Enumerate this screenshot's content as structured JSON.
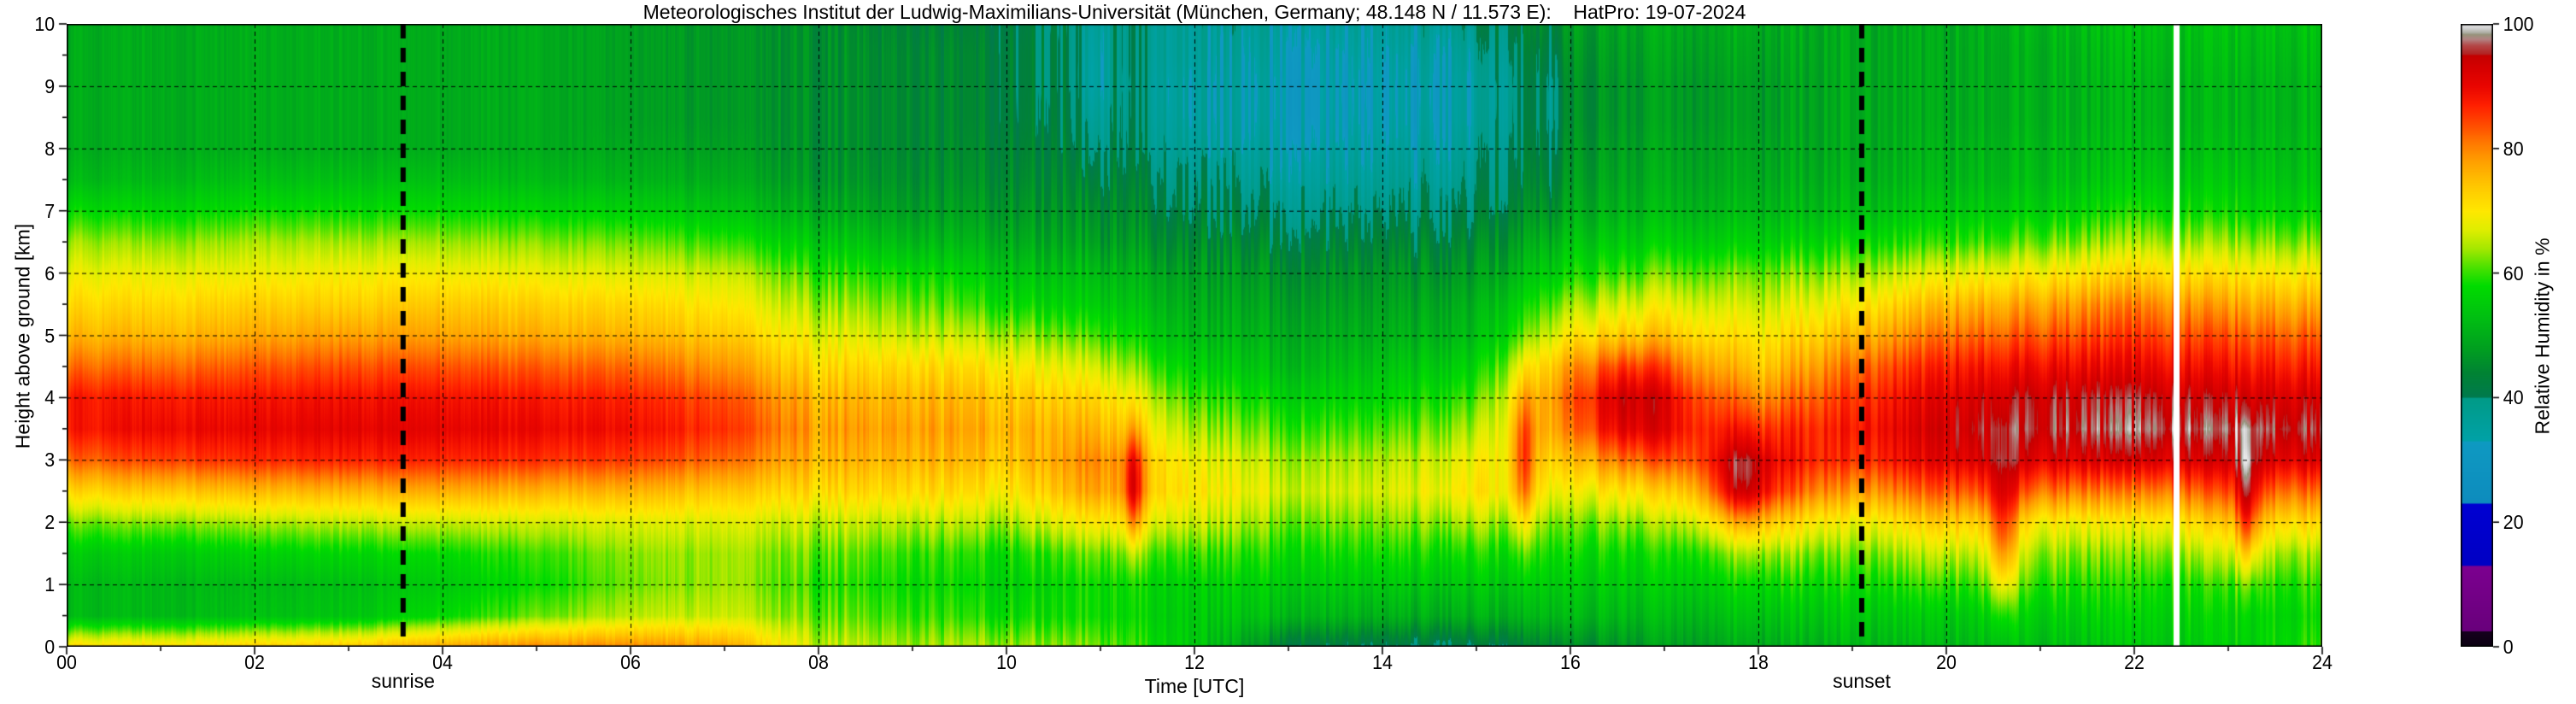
{
  "title": "Meteorologisches Institut der Ludwig-Maximilians-Universität (München, Germany; 48.148 N / 11.573 E):    HatPro: 19-07-2024",
  "x_axis": {
    "label": "Time [UTC]",
    "range_hours": [
      0,
      24
    ],
    "major_tick_step_hours": 2,
    "minor_tick_step_hours": 1,
    "tick_labels": [
      "00",
      "02",
      "04",
      "06",
      "08",
      "10",
      "12",
      "14",
      "16",
      "18",
      "20",
      "22",
      "24"
    ]
  },
  "y_axis": {
    "label": "Height above ground [km]",
    "range_km": [
      0,
      10
    ],
    "major_tick_step_km": 1,
    "minor_tick_step_km": 0.5,
    "tick_labels": [
      "0",
      "1",
      "2",
      "3",
      "4",
      "5",
      "6",
      "7",
      "8",
      "9",
      "10"
    ]
  },
  "colorbar": {
    "label": "Relative Humidity in %",
    "range": [
      0,
      100
    ],
    "tick_labels": [
      "0",
      "20",
      "40",
      "60",
      "80",
      "100"
    ]
  },
  "annotations": {
    "sunrise": {
      "label": "sunrise",
      "time_utc": 3.58
    },
    "sunset": {
      "label": "sunset",
      "time_utc": 19.1
    },
    "data_gap": {
      "time_utc": 22.45,
      "color": "#ffffff"
    }
  },
  "colors": {
    "background": "#ffffff",
    "frame": "#000000",
    "grid": "#000000",
    "sun_lines": "#000000"
  },
  "colormap_stops": [
    [
      0,
      "#0b0012"
    ],
    [
      2.5,
      "#16001e"
    ],
    [
      2.6,
      "#69007c"
    ],
    [
      13,
      "#7c0090"
    ],
    [
      13.1,
      "#0000c4"
    ],
    [
      23,
      "#0000d2"
    ],
    [
      23.1,
      "#0d8cbe"
    ],
    [
      33,
      "#0f9ac2"
    ],
    [
      33.1,
      "#00a2a8"
    ],
    [
      40,
      "#009b87"
    ],
    [
      40.1,
      "#007a4e"
    ],
    [
      44,
      "#008334"
    ],
    [
      48,
      "#00a020"
    ],
    [
      53,
      "#00c012"
    ],
    [
      58,
      "#00dc00"
    ],
    [
      61,
      "#4ce200"
    ],
    [
      64,
      "#a6e800"
    ],
    [
      67,
      "#e0ee00"
    ],
    [
      70,
      "#ffe800"
    ],
    [
      74,
      "#ffc800"
    ],
    [
      78,
      "#ffa000"
    ],
    [
      81,
      "#ff7800"
    ],
    [
      84,
      "#ff4a00"
    ],
    [
      87,
      "#ff2000"
    ],
    [
      90,
      "#ea0600"
    ],
    [
      93,
      "#d60000"
    ],
    [
      95,
      "#c40000"
    ],
    [
      95.2,
      "#b22222"
    ],
    [
      96.6,
      "#b44848"
    ],
    [
      97.6,
      "#b28484"
    ],
    [
      98.4,
      "#96967c"
    ],
    [
      98.6,
      "#ababa0"
    ],
    [
      99.3,
      "#cfcfcf"
    ],
    [
      100,
      "#eaeaea"
    ]
  ],
  "chart_data": {
    "type": "heatmap",
    "title": "Relative humidity time-height section, HATPRO microwave radiometer, 19-07-2024",
    "xlabel": "Time [UTC]",
    "ylabel": "Height above ground [km]",
    "value_unit": "% relative humidity",
    "xlim": [
      0,
      24
    ],
    "ylim": [
      0,
      10
    ],
    "value_range": [
      0,
      100
    ],
    "grid": "dashed, 2 h vertical / 1 km horizontal",
    "legend_position": "colorbar right",
    "x_hours": [
      0,
      1,
      2,
      3,
      4,
      5,
      6,
      7,
      8,
      9,
      10,
      11,
      12,
      13,
      14,
      15,
      16,
      17,
      18,
      19,
      20,
      21,
      22,
      23,
      24
    ],
    "heights_km": [
      0,
      0.5,
      1,
      1.5,
      2,
      2.5,
      3,
      3.5,
      4,
      4.5,
      5,
      5.5,
      6,
      6.5,
      7,
      7.5,
      8,
      8.5,
      9,
      9.5,
      10
    ],
    "rh_profiles_bottom_to_top_by_hour": [
      [
        72,
        52,
        52,
        55,
        62,
        72,
        82,
        88,
        88,
        82,
        76,
        72,
        68,
        64,
        58,
        52,
        50,
        50,
        50,
        50,
        50
      ],
      [
        72,
        52,
        52,
        55,
        63,
        74,
        85,
        90,
        88,
        82,
        76,
        72,
        68,
        63,
        57,
        52,
        50,
        50,
        50,
        50,
        50
      ],
      [
        73,
        53,
        52,
        56,
        64,
        75,
        86,
        90,
        88,
        83,
        77,
        73,
        68,
        64,
        58,
        53,
        50,
        50,
        50,
        50,
        50
      ],
      [
        74,
        54,
        53,
        57,
        65,
        76,
        87,
        91,
        89,
        84,
        78,
        73,
        69,
        64,
        58,
        53,
        50,
        50,
        50,
        50,
        50
      ],
      [
        78,
        58,
        55,
        58,
        66,
        77,
        87,
        91,
        89,
        84,
        78,
        74,
        69,
        64,
        58,
        53,
        50,
        50,
        50,
        50,
        50
      ],
      [
        80,
        62,
        58,
        60,
        66,
        76,
        86,
        90,
        88,
        83,
        77,
        73,
        68,
        63,
        57,
        52,
        50,
        50,
        50,
        50,
        50
      ],
      [
        80,
        65,
        62,
        63,
        67,
        76,
        85,
        89,
        87,
        82,
        76,
        72,
        67,
        62,
        56,
        51,
        49,
        48,
        48,
        48,
        48
      ],
      [
        78,
        66,
        64,
        64,
        67,
        74,
        82,
        86,
        84,
        79,
        74,
        70,
        66,
        60,
        54,
        50,
        48,
        47,
        47,
        47,
        47
      ],
      [
        66,
        62,
        60,
        62,
        66,
        72,
        76,
        78,
        76,
        72,
        68,
        64,
        60,
        55,
        50,
        47,
        46,
        46,
        46,
        46,
        46
      ],
      [
        64,
        60,
        58,
        60,
        65,
        72,
        76,
        78,
        76,
        72,
        66,
        62,
        58,
        52,
        48,
        46,
        45,
        45,
        45,
        45,
        44
      ],
      [
        64,
        58,
        56,
        58,
        64,
        70,
        74,
        76,
        74,
        70,
        64,
        58,
        54,
        50,
        47,
        45,
        44,
        43,
        43,
        43,
        42
      ],
      [
        62,
        58,
        58,
        62,
        70,
        78,
        80,
        76,
        72,
        66,
        60,
        55,
        52,
        48,
        46,
        44,
        42,
        41,
        40,
        40,
        40
      ],
      [
        55,
        55,
        56,
        60,
        66,
        70,
        68,
        64,
        60,
        56,
        52,
        50,
        48,
        45,
        42,
        40,
        38,
        37,
        37,
        38,
        38
      ],
      [
        42,
        52,
        55,
        58,
        62,
        66,
        64,
        60,
        56,
        52,
        50,
        48,
        46,
        43,
        40,
        38,
        37,
        36,
        36,
        37,
        38
      ],
      [
        40,
        50,
        54,
        58,
        62,
        66,
        64,
        60,
        56,
        53,
        50,
        48,
        46,
        43,
        40,
        38,
        37,
        36,
        36,
        37,
        38
      ],
      [
        40,
        50,
        54,
        58,
        64,
        70,
        68,
        64,
        60,
        56,
        52,
        50,
        47,
        44,
        41,
        39,
        38,
        37,
        37,
        38,
        40
      ],
      [
        45,
        52,
        55,
        58,
        62,
        68,
        74,
        80,
        82,
        78,
        70,
        64,
        58,
        54,
        50,
        48,
        47,
        46,
        46,
        47,
        48
      ],
      [
        48,
        52,
        55,
        58,
        64,
        72,
        82,
        88,
        88,
        82,
        74,
        68,
        62,
        56,
        52,
        50,
        49,
        48,
        48,
        49,
        50
      ],
      [
        50,
        54,
        58,
        64,
        74,
        86,
        90,
        86,
        80,
        74,
        70,
        66,
        62,
        56,
        52,
        50,
        49,
        48,
        48,
        49,
        50
      ],
      [
        52,
        55,
        58,
        62,
        68,
        78,
        86,
        88,
        86,
        82,
        76,
        70,
        64,
        58,
        53,
        51,
        50,
        50,
        50,
        50,
        50
      ],
      [
        52,
        55,
        60,
        66,
        74,
        84,
        92,
        94,
        92,
        88,
        82,
        76,
        68,
        60,
        55,
        52,
        51,
        50,
        50,
        50,
        50
      ],
      [
        53,
        56,
        60,
        64,
        70,
        82,
        92,
        96,
        95,
        90,
        84,
        78,
        70,
        62,
        56,
        53,
        52,
        51,
        51,
        51,
        52
      ],
      [
        54,
        56,
        58,
        62,
        68,
        80,
        92,
        97,
        95,
        90,
        85,
        80,
        72,
        64,
        58,
        54,
        52,
        51,
        51,
        52,
        53
      ],
      [
        56,
        57,
        60,
        66,
        74,
        84,
        93,
        97,
        94,
        89,
        84,
        78,
        71,
        64,
        58,
        55,
        53,
        52,
        52,
        53,
        54
      ],
      [
        60,
        58,
        60,
        64,
        72,
        82,
        92,
        96,
        93,
        88,
        83,
        77,
        70,
        63,
        57,
        54,
        53,
        52,
        52,
        53,
        54
      ]
    ],
    "local_anomalies_gaussian": [
      {
        "t": 10.9,
        "h": 9.2,
        "dt": 0.15,
        "dh": 1.6,
        "dv": -6
      },
      {
        "t": 13.6,
        "h": 9.0,
        "dt": 1.8,
        "dh": 1.8,
        "dv": -4
      },
      {
        "t": 15.8,
        "h": 8.6,
        "dt": 0.12,
        "dh": 2.0,
        "dv": -5
      },
      {
        "t": 11.35,
        "h": 2.6,
        "dt": 0.1,
        "dh": 0.9,
        "dv": 16
      },
      {
        "t": 15.5,
        "h": 3.0,
        "dt": 0.12,
        "dh": 1.2,
        "dv": 14
      },
      {
        "t": 16.6,
        "h": 3.9,
        "dt": 0.45,
        "dh": 0.9,
        "dv": 8
      },
      {
        "t": 17.8,
        "h": 2.6,
        "dt": 0.3,
        "dh": 0.7,
        "dv": 10
      },
      {
        "t": 20.6,
        "h": 1.8,
        "dt": 0.15,
        "dh": 1.2,
        "dv": 16
      },
      {
        "t": 23.2,
        "h": 2.2,
        "dt": 0.12,
        "dh": 1.0,
        "dv": 14
      }
    ]
  }
}
